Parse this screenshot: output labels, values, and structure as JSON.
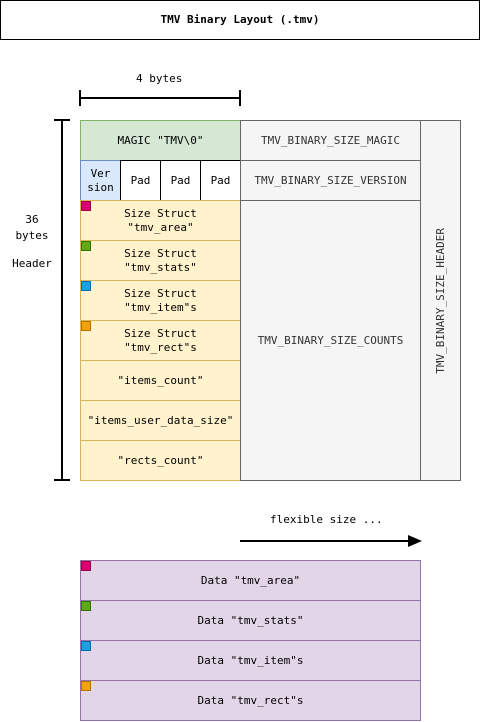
{
  "title": "TMV Binary Layout (.tmv)",
  "width_label": "4 bytes",
  "header_size_label": "36\nbytes",
  "header_label": "Header",
  "header": {
    "magic": "MAGIC \"TMV\\0\"",
    "version": "Ver\nsion",
    "pads": [
      "Pad",
      "Pad",
      "Pad"
    ],
    "size_structs": [
      {
        "label": "Size Struct\n\"tmv_area\"",
        "marker": "pink"
      },
      {
        "label": "Size Struct\n\"tmv_stats\"",
        "marker": "green"
      },
      {
        "label": "Size Struct\n\"tmv_item\"s",
        "marker": "blue"
      },
      {
        "label": "Size Struct\n\"tmv_rect\"s",
        "marker": "orange"
      }
    ],
    "counts": [
      "\"items_count\"",
      "\"items_user_data_size\"",
      "\"rects_count\""
    ]
  },
  "size_labels": {
    "magic": "TMV_BINARY_SIZE_MAGIC",
    "version": "TMV_BINARY_SIZE_VERSION",
    "counts": "TMV_BINARY_SIZE_COUNTS",
    "header": "TMV_BINARY_SIZE_HEADER"
  },
  "flexible_label": "flexible size ...",
  "data_blocks": [
    {
      "label": "Data \"tmv_area\"",
      "marker": "pink"
    },
    {
      "label": "Data \"tmv_stats\"",
      "marker": "green"
    },
    {
      "label": "Data \"tmv_item\"s",
      "marker": "blue"
    },
    {
      "label": "Data \"tmv_rect\"s",
      "marker": "orange"
    }
  ],
  "colors": {
    "magic_fill": "#d5e8d4",
    "version_fill": "#dae8fc",
    "struct_fill": "#fff2cc",
    "size_fill": "#f5f5f5",
    "data_fill": "#e1d5e7",
    "marker_pink": "#d80073",
    "marker_green": "#60a917",
    "marker_blue": "#1ba1e2",
    "marker_orange": "#f0a30a"
  }
}
